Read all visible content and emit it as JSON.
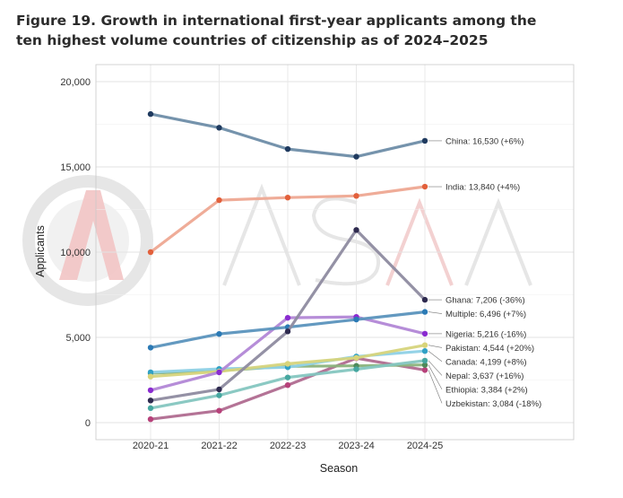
{
  "figure_title": "Figure 19. Growth in international first-year applicants among the ten highest volume countries of citizenship as of 2024–2025",
  "watermark": {
    "text": "ASAA",
    "color": "#c8c8c8",
    "accent": "#f2c4c4"
  },
  "chart_data": {
    "type": "line",
    "title": "Figure 19. Growth in international first-year applicants among the ten highest volume countries of citizenship as of 2024–2025",
    "xlabel": "Season",
    "ylabel": "Applicants",
    "x": [
      "2020-21",
      "2021-22",
      "2022-23",
      "2023-24",
      "2024-25"
    ],
    "ylim": [
      -1000,
      21000
    ],
    "yticks": [
      0,
      5000,
      10000,
      15000,
      20000
    ],
    "ytick_labels": [
      "0",
      "5,000",
      "10,000",
      "15,000",
      "20,000"
    ],
    "grid": true,
    "series": [
      {
        "name": "Uzbekistan",
        "label": "Uzbekistan: 3,084 (-18%)",
        "values": [
          200,
          700,
          2200,
          3780,
          3084
        ],
        "color": "#b7417a",
        "line_color": "#b06c90"
      },
      {
        "name": "Ethiopia",
        "label": "Ethiopia: 3,384 (+2%)",
        "values": [
          2900,
          3050,
          3300,
          3330,
          3384
        ],
        "color": "#4f8a5a",
        "line_color": "#8bb37c"
      },
      {
        "name": "Nepal",
        "label": "Nepal: 3,637 (+16%)",
        "values": [
          850,
          1600,
          2650,
          3130,
          3637
        ],
        "color": "#46a7a0",
        "line_color": "#85c6c0"
      },
      {
        "name": "Canada",
        "label": "Canada: 4,199 (+8%)",
        "values": [
          2950,
          3150,
          3250,
          3880,
          4199
        ],
        "color": "#30a1c6",
        "line_color": "#8fd1e6"
      },
      {
        "name": "Pakistan",
        "label": "Pakistan: 4,544 (+20%)",
        "values": [
          2700,
          3000,
          3450,
          3800,
          4544
        ],
        "color": "#d8d47a",
        "line_color": "#d6d47c"
      },
      {
        "name": "Nigeria",
        "label": "Nigeria: 5,216 (-16%)",
        "values": [
          1900,
          2950,
          6150,
          6200,
          5216
        ],
        "color": "#8a2bd0",
        "line_color": "#b287d6"
      },
      {
        "name": "Multiple",
        "label": "Multiple: 6,496 (+7%)",
        "values": [
          4400,
          5200,
          5600,
          6050,
          6496
        ],
        "color": "#2b7ab5",
        "line_color": "#5b93bd"
      },
      {
        "name": "Ghana",
        "label": "Ghana: 7,206 (-36%)",
        "values": [
          1300,
          1950,
          5350,
          11300,
          7206
        ],
        "color": "#2e2a4f",
        "line_color": "#8e8ba0"
      },
      {
        "name": "India",
        "label": "India: 13,840 (+4%)",
        "values": [
          10000,
          13050,
          13200,
          13300,
          13840
        ],
        "color": "#e2603b",
        "line_color": "#eea892"
      },
      {
        "name": "China",
        "label": "China: 16,530 (+6%)",
        "values": [
          18100,
          17300,
          16050,
          15600,
          16530
        ],
        "color": "#1f3a5f",
        "line_color": "#6e8da8"
      }
    ]
  }
}
